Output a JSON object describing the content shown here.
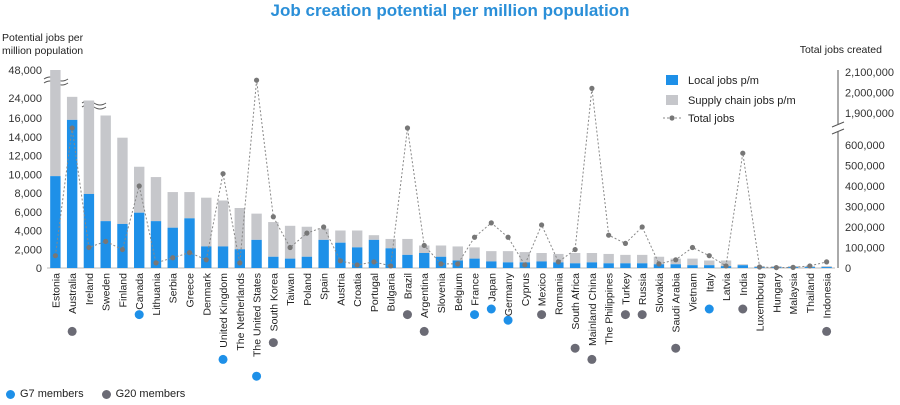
{
  "title": "Job creation potential per million population",
  "left_axis_label_line1": "Potential jobs per",
  "left_axis_label_line2": "million population",
  "right_axis_label": "Total jobs created",
  "bottom_legend": {
    "g7_label": "G7 members",
    "g20_label": "G20 members",
    "g7_color": "#1e90e8",
    "g20_color": "#6b6b75"
  },
  "chart_data": {
    "type": "bar",
    "title": "Job creation potential per million population",
    "ylabel": "Potential jobs per million population",
    "y2label": "Total jobs created",
    "left_ticks": [
      "0",
      "2,000",
      "4,000",
      "6,000",
      "8,000",
      "10,000",
      "12,000",
      "14,000",
      "16,000",
      "24,000",
      "48,000"
    ],
    "right_ticks": [
      "0",
      "100,000",
      "200,000",
      "300,000",
      "400,000",
      "500,000",
      "600,000",
      "1,900,000",
      "2,000,000",
      "2,100,000"
    ],
    "left_axis_breaks": "16,000-24,000 and 24,000-48,000",
    "right_axis_break": "600,000-1,900,000",
    "colors": {
      "local": "#1e90e8",
      "supply": "#c6c7cb",
      "total": "#777777"
    },
    "legend_position": "top-right",
    "categories": [
      "Estonia",
      "Australia",
      "Ireland",
      "Sweden",
      "Finland",
      "Canada",
      "Lithuania",
      "Serbia",
      "Greece",
      "Denmark",
      "United Kingdom",
      "The Netherlands",
      "The United States",
      "South Korea",
      "Taiwan",
      "Poland",
      "Spain",
      "Austria",
      "Croatia",
      "Portugal",
      "Bulgaria",
      "Brazil",
      "Argentina",
      "Slovenia",
      "Belgium",
      "France",
      "Japan",
      "Germany",
      "Cyprus",
      "Mexico",
      "Romania",
      "South Africa",
      "Mainland China",
      "The Philippines",
      "Turkey",
      "Russia",
      "Slovakia",
      "Saudi Arabia",
      "Vietnam",
      "Italy",
      "Latvia",
      "India",
      "Luxembourg",
      "Hungary",
      "Malaysia",
      "Thailand",
      "Indonesia"
    ],
    "membership": [
      "",
      "G20",
      "",
      "",
      "",
      "G7",
      "",
      "",
      "",
      "",
      "G7",
      "",
      "G7",
      "G20",
      "",
      "",
      "",
      "",
      "",
      "",
      "",
      "G20",
      "G20",
      "",
      "",
      "G7",
      "G7",
      "G7",
      "",
      "G20",
      "",
      "G20",
      "G20",
      "",
      "G20",
      "G20",
      "",
      "G20",
      "",
      "G7",
      "",
      "G20",
      "",
      "",
      "",
      "",
      "G20"
    ],
    "series": [
      {
        "name": "Local jobs p/m",
        "values": [
          9800,
          15800,
          7900,
          5000,
          4700,
          5900,
          5000,
          4300,
          5300,
          2300,
          2300,
          2000,
          3000,
          1200,
          1000,
          1200,
          3000,
          2700,
          2200,
          3000,
          2100,
          1400,
          1600,
          1200,
          800,
          1000,
          700,
          600,
          600,
          700,
          600,
          500,
          600,
          500,
          500,
          500,
          400,
          400,
          300,
          300,
          200,
          300,
          100,
          100,
          100,
          100,
          100
        ]
      },
      {
        "name": "Supply chain jobs p/m",
        "values": [
          38200,
          9200,
          15100,
          12000,
          9200,
          4900,
          4700,
          3800,
          2800,
          5200,
          4900,
          4400,
          2800,
          3700,
          3500,
          3200,
          1200,
          1300,
          1800,
          500,
          1000,
          1700,
          800,
          1200,
          1500,
          1200,
          1100,
          1200,
          1100,
          900,
          900,
          1100,
          1000,
          1000,
          900,
          900,
          800,
          600,
          700,
          500,
          600,
          100,
          100,
          100,
          100,
          100,
          100
        ]
      },
      {
        "name": "Total jobs",
        "values": [
          60000,
          620000,
          100000,
          130000,
          90000,
          400000,
          25000,
          50000,
          75000,
          40000,
          460000,
          25000,
          2060000,
          250000,
          100000,
          170000,
          200000,
          35000,
          15000,
          30000,
          10000,
          620000,
          110000,
          20000,
          20000,
          150000,
          220000,
          150000,
          15000,
          210000,
          30000,
          90000,
          2020000,
          160000,
          120000,
          200000,
          20000,
          40000,
          100000,
          60000,
          10000,
          560000,
          5000,
          2000,
          3000,
          10000,
          30000
        ]
      }
    ]
  }
}
